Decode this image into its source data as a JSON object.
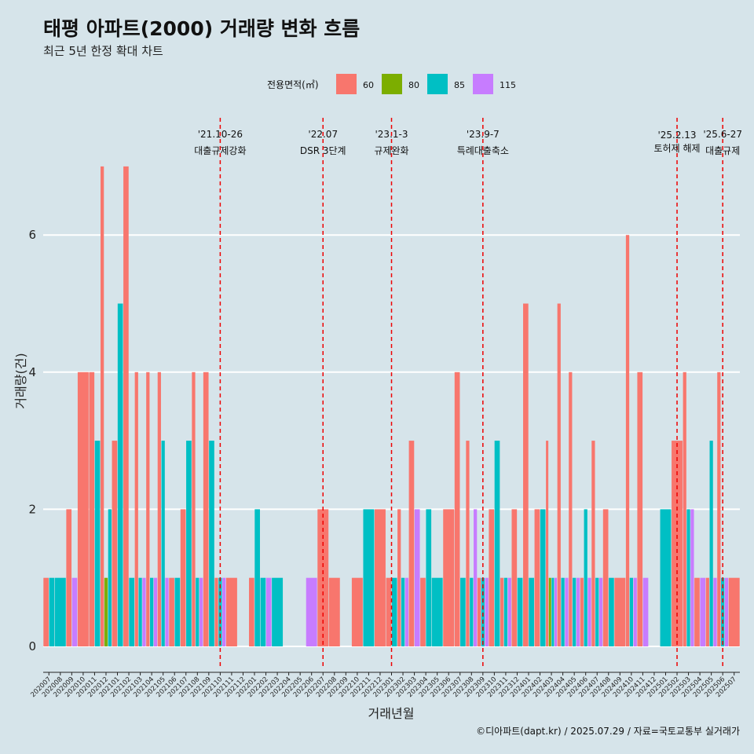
{
  "colors": {
    "background": "#d6e4ea",
    "grid": "#ffffff",
    "event_line": "#ee0000",
    "axis": "#222222"
  },
  "chart_data": {
    "type": "bar",
    "title": "태평 아파트(2000) 거래량 변화 흐름",
    "subtitle": "최근 5년 한정 확대 차트",
    "xlabel": "거래년월",
    "ylabel": "거래량(건)",
    "ylim": [
      -0.3,
      7.7
    ],
    "yticks": [
      0,
      2,
      4,
      6
    ],
    "grid": true,
    "legend": {
      "title": "전용면적(㎡)",
      "position": "top",
      "entries": [
        {
          "name": "60",
          "color": "#f8766d"
        },
        {
          "name": "80",
          "color": "#7cae00"
        },
        {
          "name": "85",
          "color": "#00bfc4"
        },
        {
          "name": "115",
          "color": "#c77cff"
        }
      ]
    },
    "categories": [
      "202007",
      "202008",
      "202009",
      "202010",
      "202011",
      "202012",
      "202101",
      "202102",
      "202103",
      "202104",
      "202105",
      "202106",
      "202107",
      "202108",
      "202109",
      "202110",
      "202111",
      "202112",
      "202201",
      "202202",
      "202203",
      "202204",
      "202205",
      "202206",
      "202207",
      "202208",
      "202209",
      "202210",
      "202211",
      "202212",
      "202301",
      "202302",
      "202303",
      "202304",
      "202305",
      "202306",
      "202307",
      "202308",
      "202309",
      "202310",
      "202311",
      "202312",
      "202401",
      "202402",
      "202403",
      "202404",
      "202405",
      "202406",
      "202407",
      "202408",
      "202409",
      "202410",
      "202411",
      "202412",
      "202501",
      "202502",
      "202503",
      "202504",
      "202505",
      "202506",
      "202507"
    ],
    "series": [
      {
        "name": "60",
        "color": "#f8766d",
        "values": [
          1,
          0,
          2,
          4,
          4,
          7,
          3,
          7,
          4,
          4,
          4,
          1,
          2,
          4,
          4,
          1,
          1,
          0,
          1,
          0,
          0,
          0,
          0,
          0,
          2,
          1,
          0,
          1,
          0,
          2,
          1,
          2,
          3,
          1,
          0,
          2,
          4,
          3,
          1,
          2,
          1,
          2,
          5,
          2,
          3,
          5,
          4,
          1,
          3,
          2,
          1,
          6,
          4,
          0,
          0,
          3,
          4,
          1,
          1,
          4,
          1
        ]
      },
      {
        "name": "80",
        "color": "#7cae00",
        "values": [
          0,
          0,
          0,
          0,
          0,
          1,
          0,
          0,
          0,
          0,
          0,
          0,
          0,
          0,
          0,
          0,
          0,
          0,
          0,
          0,
          0,
          0,
          0,
          0,
          0,
          0,
          0,
          0,
          0,
          0,
          0,
          0,
          0,
          0,
          0,
          0,
          0,
          0,
          0,
          0,
          0,
          0,
          0,
          0,
          1,
          0,
          0,
          0,
          0,
          0,
          0,
          0,
          0,
          0,
          0,
          0,
          0,
          0,
          0,
          0,
          0
        ]
      },
      {
        "name": "85",
        "color": "#00bfc4",
        "values": [
          1,
          1,
          0,
          0,
          3,
          2,
          5,
          1,
          1,
          1,
          3,
          1,
          3,
          1,
          3,
          1,
          0,
          0,
          2,
          1,
          1,
          0,
          0,
          0,
          0,
          0,
          0,
          0,
          2,
          0,
          1,
          1,
          0,
          2,
          1,
          0,
          1,
          1,
          1,
          3,
          1,
          1,
          1,
          2,
          1,
          1,
          1,
          2,
          1,
          1,
          0,
          1,
          0,
          0,
          2,
          0,
          2,
          0,
          3,
          1,
          0
        ]
      },
      {
        "name": "115",
        "color": "#c77cff",
        "values": [
          0,
          0,
          1,
          0,
          0,
          0,
          0,
          0,
          1,
          1,
          1,
          0,
          0,
          1,
          0,
          1,
          0,
          0,
          0,
          1,
          0,
          0,
          0,
          1,
          0,
          0,
          0,
          0,
          0,
          0,
          0,
          1,
          2,
          0,
          0,
          0,
          0,
          2,
          1,
          0,
          1,
          0,
          0,
          0,
          1,
          1,
          1,
          1,
          1,
          0,
          0,
          1,
          1,
          0,
          0,
          0,
          2,
          1,
          1,
          1,
          0
        ]
      }
    ],
    "events": [
      {
        "date": "'21.10-26",
        "label": "대출규제강화",
        "category": "202110"
      },
      {
        "date": "'22.07",
        "label": "DSR 3단계",
        "category": "202207"
      },
      {
        "date": "'23.1-3",
        "label": "규제완화",
        "category": "202301"
      },
      {
        "date": "'23.9-7",
        "label": "특례대출축소",
        "category": "202309"
      },
      {
        "date": "'25.2.13",
        "label": "토허제 해제",
        "category": "202502"
      },
      {
        "date": "'25.6-27",
        "label": "대출규제",
        "category": "202506"
      }
    ]
  },
  "caption": "©디아파트(dapt.kr) / 2025.07.29 / 자료=국토교통부 실거래가"
}
